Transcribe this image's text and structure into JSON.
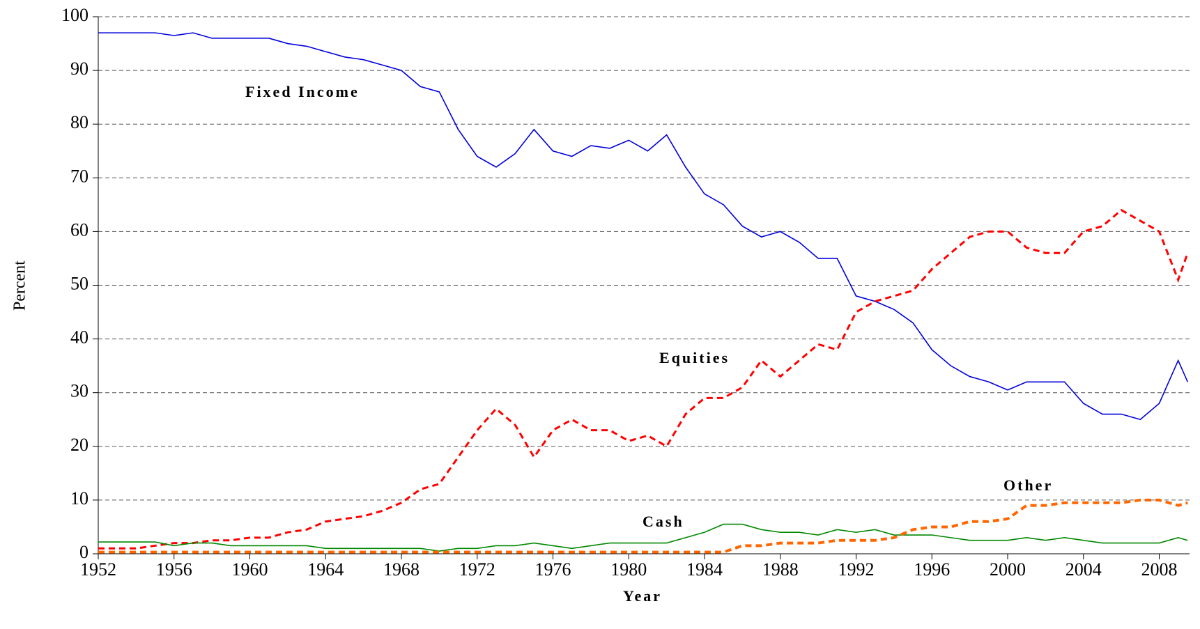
{
  "chart_data": {
    "type": "line",
    "x_label": "Year",
    "y_label": "Percent",
    "x": [
      1952,
      1953,
      1954,
      1955,
      1956,
      1957,
      1958,
      1959,
      1960,
      1961,
      1962,
      1963,
      1964,
      1965,
      1966,
      1967,
      1968,
      1969,
      1970,
      1971,
      1972,
      1973,
      1974,
      1975,
      1976,
      1977,
      1978,
      1979,
      1980,
      1981,
      1982,
      1983,
      1984,
      1985,
      1986,
      1987,
      1988,
      1989,
      1990,
      1991,
      1992,
      1993,
      1994,
      1995,
      1996,
      1997,
      1998,
      1999,
      2000,
      2001,
      2002,
      2003,
      2004,
      2005,
      2006,
      2007,
      2008,
      2009,
      2009.5
    ],
    "series": [
      {
        "name": "Fixed Income",
        "color": "#0000dd",
        "style": "solid",
        "values": [
          97,
          97,
          97,
          97,
          96.5,
          97,
          96,
          96,
          96,
          96,
          95,
          94.5,
          93.5,
          92.5,
          92,
          91,
          90,
          87,
          86,
          79,
          74,
          72,
          74.5,
          79,
          75,
          74,
          76,
          75.5,
          77,
          75,
          78,
          72,
          67,
          65,
          61,
          59,
          60,
          58,
          55,
          55,
          48,
          47,
          45.5,
          43,
          38,
          35,
          33,
          32,
          30.5,
          32,
          32,
          32,
          28,
          26,
          26,
          25,
          28,
          36,
          32
        ]
      },
      {
        "name": "Equities",
        "color": "#ff0000",
        "style": "dashed",
        "values": [
          1,
          1,
          1,
          1.5,
          2,
          2,
          2.5,
          2.5,
          3,
          3,
          4,
          4.5,
          6,
          6.5,
          7,
          8,
          9.5,
          12,
          13,
          18,
          23,
          27,
          24,
          18,
          23,
          25,
          23,
          23,
          21,
          22,
          20,
          26,
          29,
          29,
          31,
          36,
          33,
          36,
          39,
          38,
          45,
          47,
          48,
          49,
          53,
          56,
          59,
          60,
          60,
          57,
          56,
          56,
          60,
          61,
          64,
          62,
          60,
          51,
          56
        ]
      },
      {
        "name": "Cash",
        "color": "#008800",
        "style": "solid",
        "values": [
          2.2,
          2.2,
          2.2,
          2.2,
          1.5,
          2,
          2,
          1.5,
          1.5,
          1.5,
          1.5,
          1.5,
          1,
          1,
          1,
          1,
          1,
          1,
          0.5,
          1,
          1,
          1.5,
          1.5,
          2,
          1.5,
          1,
          1.5,
          2,
          2,
          2,
          2,
          3,
          4,
          5.5,
          5.5,
          4.5,
          4,
          4,
          3.5,
          4.5,
          4,
          4.5,
          3.5,
          3.5,
          3.5,
          3,
          2.5,
          2.5,
          2.5,
          3,
          2.5,
          3,
          2.5,
          2,
          2,
          2,
          2,
          3,
          2.5
        ]
      },
      {
        "name": "Other",
        "color": "#ff6600",
        "style": "dashed",
        "values": [
          0.3,
          0.3,
          0.3,
          0.3,
          0.3,
          0.3,
          0.3,
          0.3,
          0.3,
          0.3,
          0.3,
          0.3,
          0.3,
          0.3,
          0.3,
          0.3,
          0.3,
          0.3,
          0.3,
          0.3,
          0.3,
          0.3,
          0.3,
          0.3,
          0.3,
          0.3,
          0.3,
          0.3,
          0.3,
          0.3,
          0.3,
          0.3,
          0.3,
          0.3,
          1.5,
          1.5,
          2,
          2,
          2,
          2.5,
          2.5,
          2.5,
          3,
          4.5,
          5,
          5,
          6,
          6,
          6.5,
          9,
          9,
          9.5,
          9.5,
          9.5,
          9.5,
          10,
          10,
          9,
          9.5
        ]
      }
    ],
    "xlim": [
      1952,
      2009.6
    ],
    "xticks": [
      1952,
      1956,
      1960,
      1964,
      1968,
      1972,
      1976,
      1980,
      1984,
      1988,
      1992,
      1996,
      2000,
      2004,
      2008
    ],
    "ylim": [
      0,
      100
    ],
    "yticks": [
      0,
      10,
      20,
      30,
      40,
      50,
      60,
      70,
      80,
      90,
      100
    ],
    "grid": true
  }
}
